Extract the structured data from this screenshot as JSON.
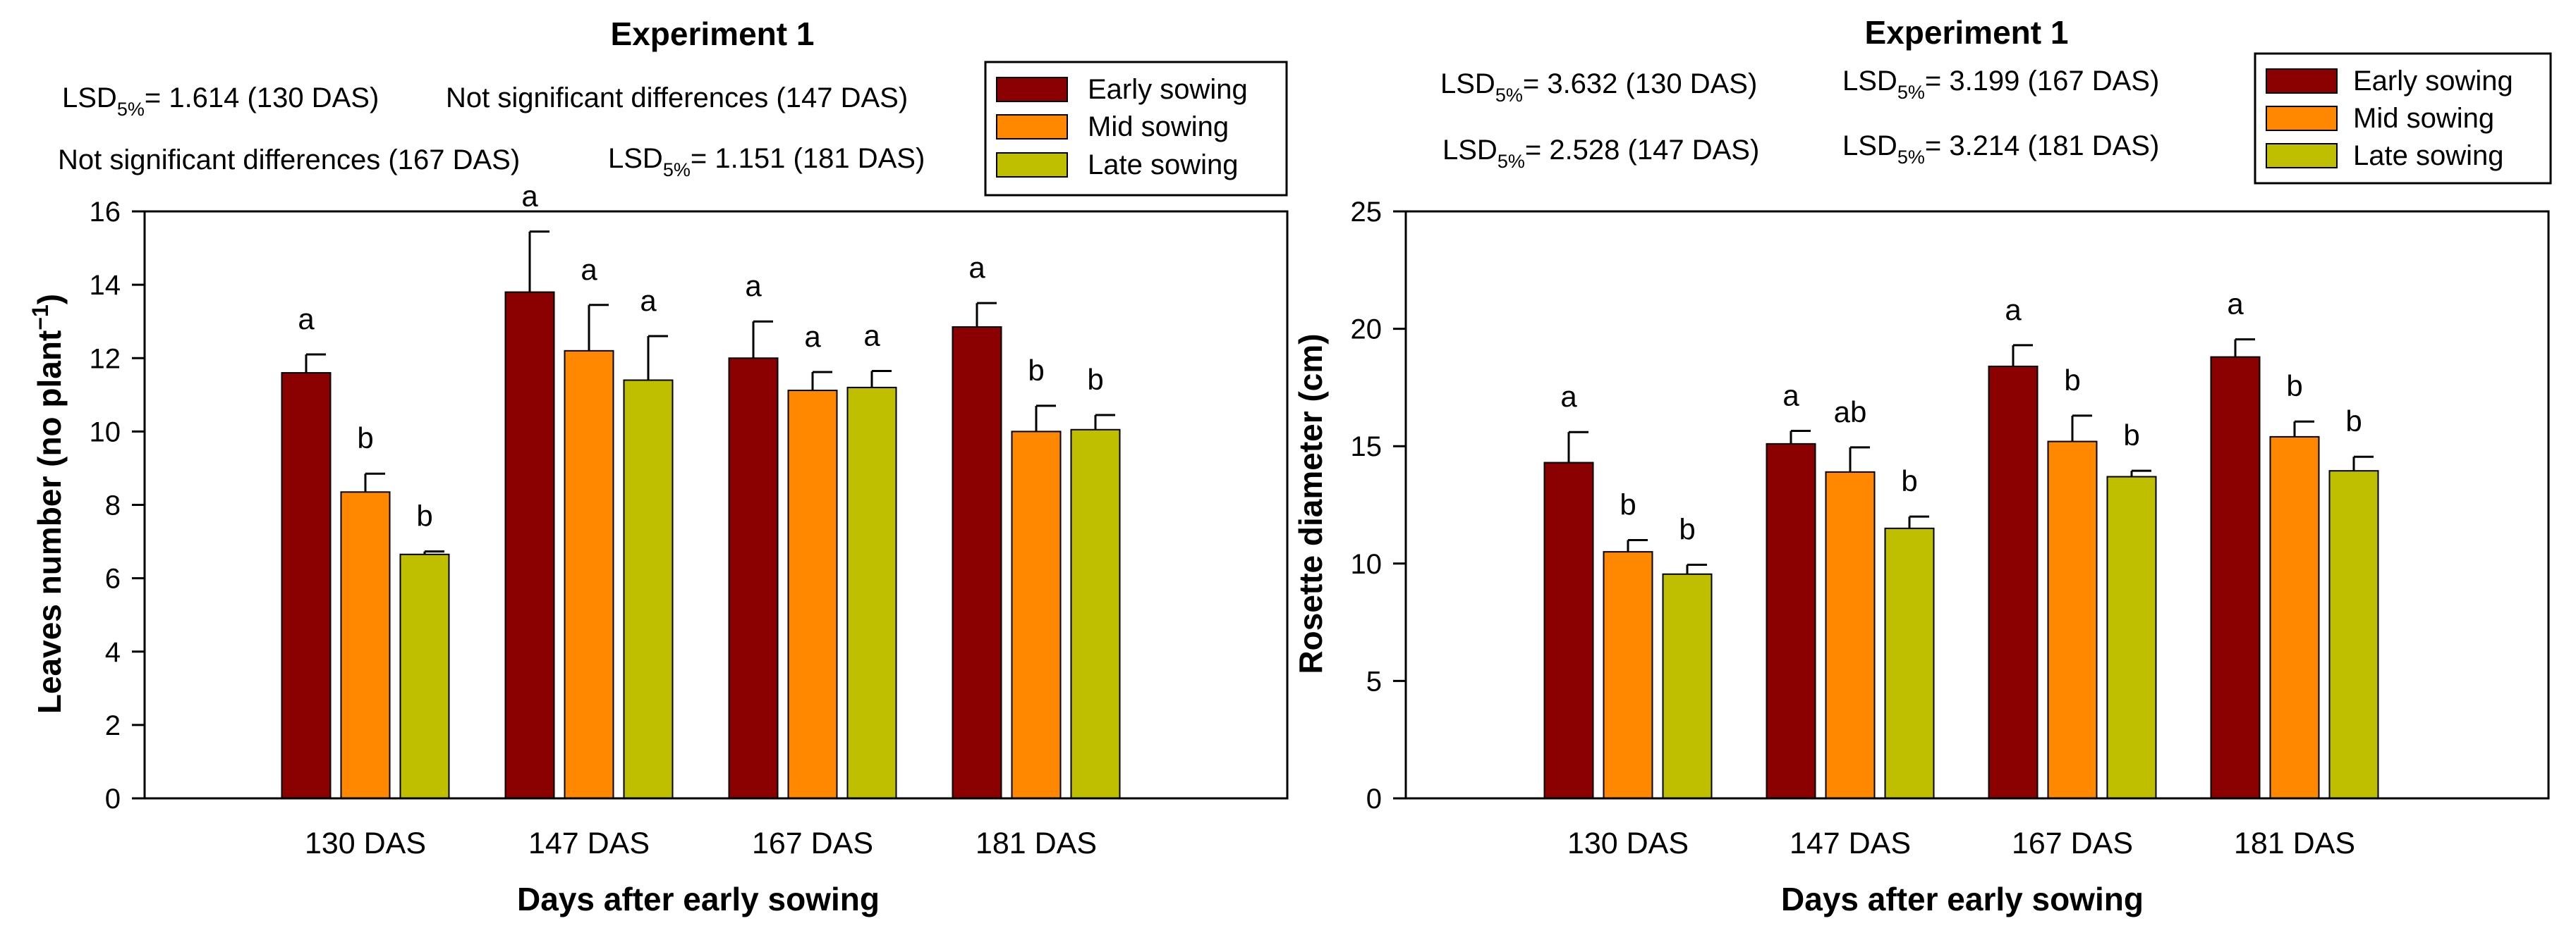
{
  "chart_data": [
    {
      "type": "bar",
      "title": "Experiment 1",
      "xlabel": "Days after early sowing",
      "ylabel": "Leaves number (no plant⁻¹)",
      "ylabel_main": "Leaves number (no plant",
      "ylabel_sup": "−1",
      "ylabel_close": ")",
      "ylim": [
        0,
        16
      ],
      "yticks": [
        0,
        2,
        4,
        6,
        8,
        10,
        12,
        14,
        16
      ],
      "ytick_labels": [
        "0",
        "2",
        "4",
        "6",
        "8",
        "10",
        "12",
        "14",
        "16"
      ],
      "categories": [
        "130 DAS",
        "147 DAS",
        "167 DAS",
        "181 DAS"
      ],
      "series": [
        {
          "name": "Early sowing",
          "color": "#8b0000",
          "values": [
            11.6,
            13.8,
            12.0,
            12.85
          ],
          "errors": [
            0.5,
            1.65,
            1.0,
            0.65
          ],
          "letters": [
            "a",
            "a",
            "a",
            "a"
          ]
        },
        {
          "name": "Mid sowing",
          "color": "#ff8800",
          "values": [
            8.35,
            12.2,
            11.12,
            10.0
          ],
          "errors": [
            0.5,
            1.25,
            0.5,
            0.7
          ],
          "letters": [
            "b",
            "a",
            "a",
            "b"
          ]
        },
        {
          "name": "Late sowing",
          "color": "#bfbf00",
          "values": [
            6.65,
            11.4,
            11.2,
            10.05
          ],
          "errors": [
            0.08,
            1.2,
            0.45,
            0.4
          ],
          "letters": [
            "b",
            "a",
            "a",
            "b"
          ]
        }
      ],
      "legend_position": "top-right",
      "lsd_notes": [
        {
          "prefix": "LSD",
          "sub": "5%",
          "text": "= 1.614 (130 DAS)"
        },
        {
          "prefix": "",
          "sub": "",
          "text": "Not significant differences (147 DAS)"
        },
        {
          "prefix": "",
          "sub": "",
          "text": "Not significant differences (167 DAS)"
        },
        {
          "prefix": "LSD",
          "sub": "5%",
          "text": "= 1.151 (181 DAS)"
        }
      ]
    },
    {
      "type": "bar",
      "title": "Experiment 1",
      "xlabel": "Days after early sowing",
      "ylabel": "Rosette diameter (cm)",
      "ylim": [
        0,
        25
      ],
      "yticks": [
        0,
        5,
        10,
        15,
        20,
        25
      ],
      "ytick_labels": [
        "0",
        "5",
        "10",
        "15",
        "20",
        "25"
      ],
      "categories": [
        "130 DAS",
        "147 DAS",
        "167 DAS",
        "181 DAS"
      ],
      "series": [
        {
          "name": "Early sowing",
          "color": "#8b0000",
          "values": [
            14.3,
            15.1,
            18.4,
            18.8
          ],
          "errors": [
            1.3,
            0.55,
            0.9,
            0.75
          ],
          "letters": [
            "a",
            "a",
            "a",
            "a"
          ]
        },
        {
          "name": "Mid sowing",
          "color": "#ff8800",
          "values": [
            10.5,
            13.9,
            15.2,
            15.4
          ],
          "errors": [
            0.5,
            1.05,
            1.1,
            0.65
          ],
          "letters": [
            "b",
            "ab",
            "b",
            "b"
          ]
        },
        {
          "name": "Late sowing",
          "color": "#bfbf00",
          "values": [
            9.55,
            11.5,
            13.7,
            13.95
          ],
          "errors": [
            0.4,
            0.5,
            0.25,
            0.6
          ],
          "letters": [
            "b",
            "b",
            "b",
            "b"
          ]
        }
      ],
      "legend_position": "top-right",
      "lsd_notes": [
        {
          "prefix": "LSD",
          "sub": "5%",
          "text": "= 3.632 (130 DAS)"
        },
        {
          "prefix": "LSD",
          "sub": "5%",
          "text": "= 3.199 (167 DAS)"
        },
        {
          "prefix": "LSD",
          "sub": "5%",
          "text": "= 2.528 (147 DAS)"
        },
        {
          "prefix": "LSD",
          "sub": "5%",
          "text": "= 3.214 (181 DAS)"
        }
      ]
    }
  ]
}
